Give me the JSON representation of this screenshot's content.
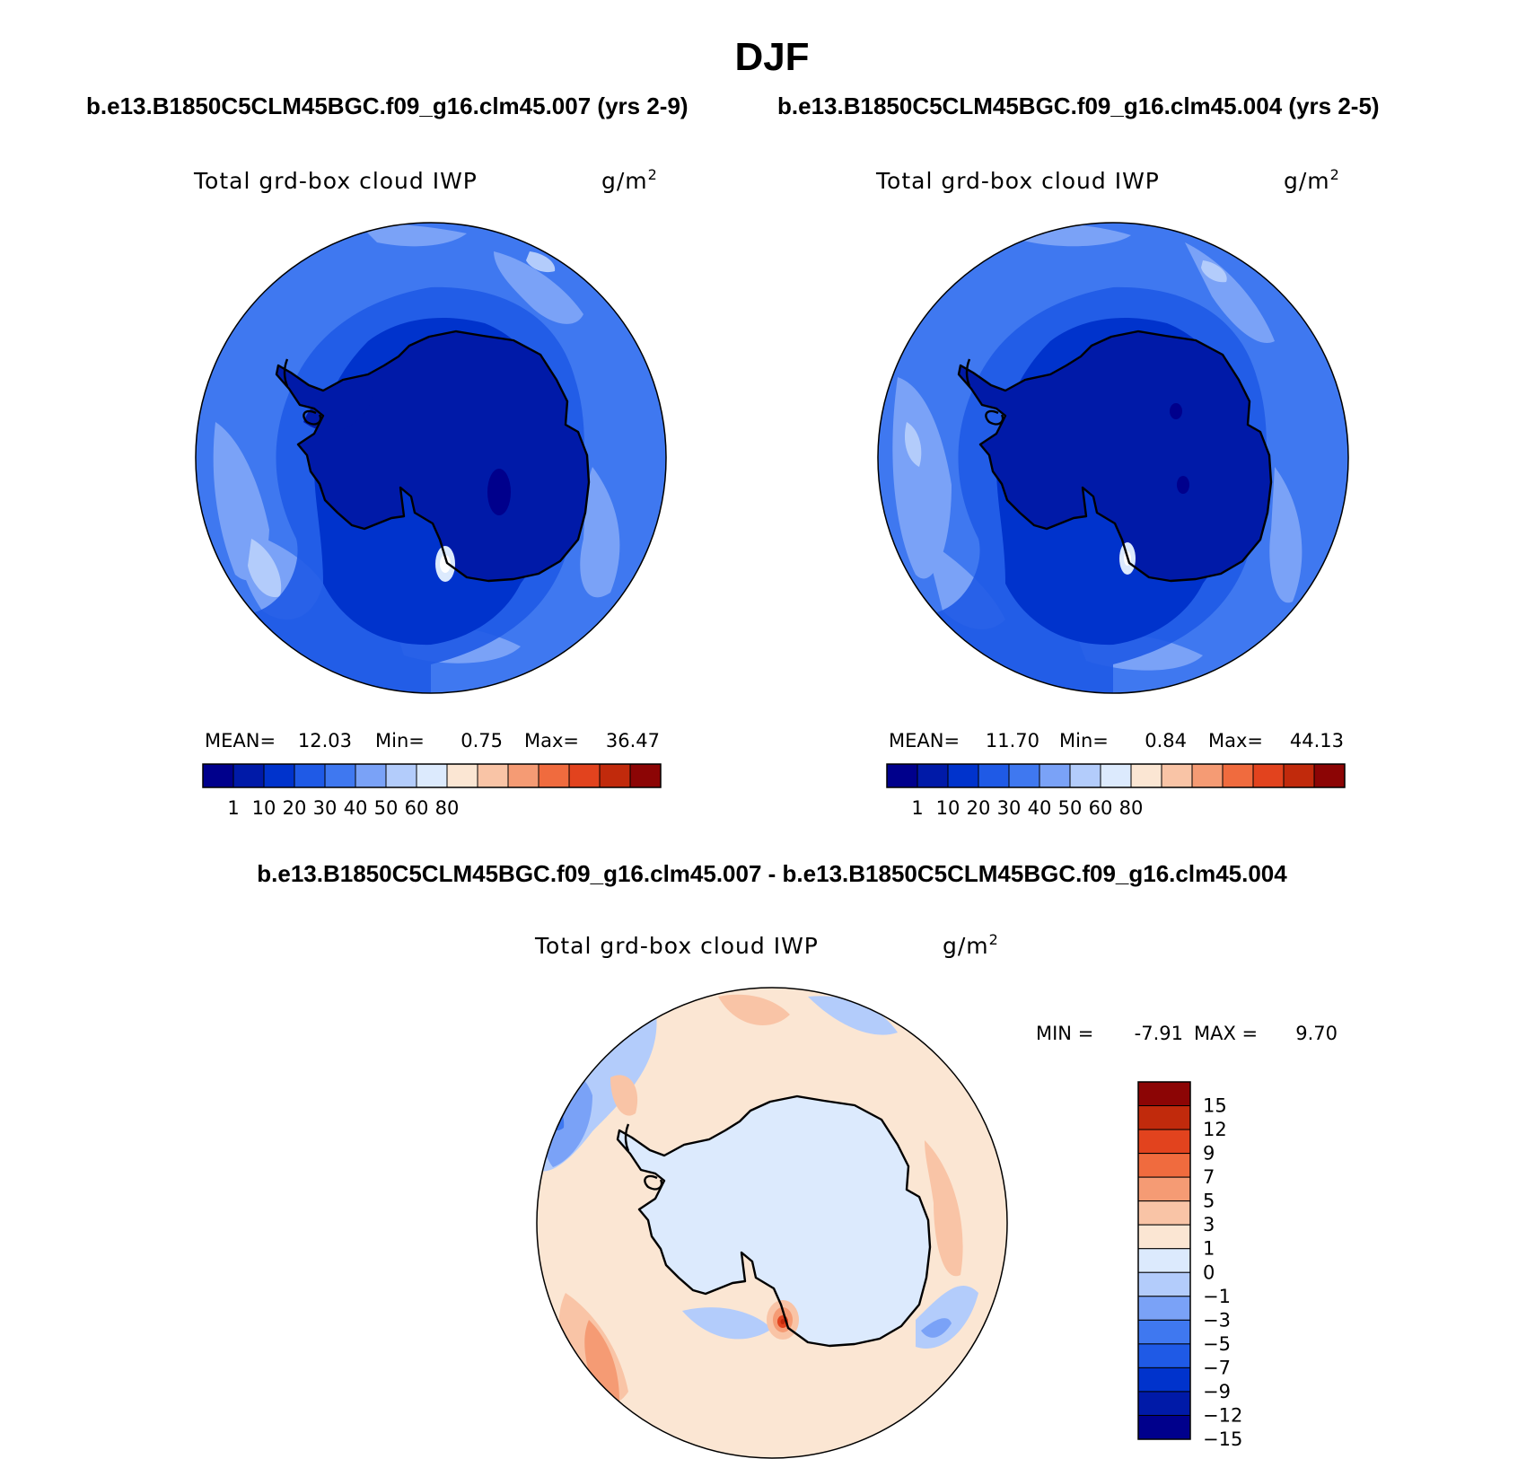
{
  "figure": {
    "season_title": "DJF",
    "top_left_case": "b.e13.B1850C5CLM45BGC.f09_g16.clm45.007 (yrs 2-9)",
    "top_right_case": "b.e13.B1850C5CLM45BGC.f09_g16.clm45.004 (yrs 2-5)",
    "diff_case": "b.e13.B1850C5CLM45BGC.f09_g16.clm45.007 - b.e13.B1850C5CLM45BGC.f09_g16.clm45.004"
  },
  "panels": [
    {
      "variable": "Total grd-box cloud IWP",
      "units": "g/m",
      "units_sup": "2",
      "mean_label": "MEAN=",
      "mean": "12.03",
      "min_label": "Min=",
      "min": "0.75",
      "max_label": "Max=",
      "max": "36.47"
    },
    {
      "variable": "Total grd-box cloud IWP",
      "units": "g/m",
      "units_sup": "2",
      "mean_label": "MEAN=",
      "mean": "11.70",
      "min_label": "Min=",
      "min": "0.84",
      "max_label": "Max=",
      "max": "44.13"
    },
    {
      "variable": "Total grd-box cloud IWP",
      "units": "g/m",
      "units_sup": "2",
      "min_label": "MIN =",
      "min": "-7.91",
      "max_label": "MAX =",
      "max": "9.70"
    }
  ],
  "colorbar_abs": {
    "ticks": [
      "1",
      "10",
      "20",
      "30",
      "40",
      "50",
      "60",
      "80"
    ],
    "colors": [
      "#00008c",
      "#001aa8",
      "#0033cc",
      "#1f5ae6",
      "#3f78f0",
      "#7aa2f7",
      "#b3ccfb",
      "#dceafd",
      "#fbe6d3",
      "#f9c4a6",
      "#f59b74",
      "#f06b3e",
      "#e2431e",
      "#c12a0c",
      "#8c0505"
    ]
  },
  "colorbar_diff": {
    "ticks": [
      "15",
      "12",
      "9",
      "7",
      "5",
      "3",
      "1",
      "0",
      "-1",
      "-3",
      "-5",
      "-7",
      "-9",
      "-12",
      "-15"
    ],
    "colors": [
      "#8c0505",
      "#c12a0c",
      "#e2431e",
      "#f06b3e",
      "#f59b74",
      "#f9c4a6",
      "#fbe6d3",
      "#dceafd",
      "#b3ccfb",
      "#7aa2f7",
      "#3f78f0",
      "#1f5ae6",
      "#0033cc",
      "#001aa8",
      "#00008c"
    ]
  },
  "map_fields": {
    "abs_left": [
      {
        "level": "#3f78f0",
        "shape": "ocean"
      },
      {
        "level": "#7aa2f7",
        "shape": "outer-bands"
      },
      {
        "level": "#b3ccfb",
        "shape": "outer-spots"
      },
      {
        "level": "#1f5ae6",
        "shape": "ring"
      },
      {
        "level": "#0033cc",
        "shape": "inner-ring"
      },
      {
        "level": "#001aa8",
        "shape": "continent"
      },
      {
        "level": "#00008c",
        "shape": "plateau-spot"
      }
    ],
    "abs_right": [
      {
        "level": "#3f78f0",
        "shape": "ocean"
      },
      {
        "level": "#7aa2f7",
        "shape": "outer-bands"
      },
      {
        "level": "#b3ccfb",
        "shape": "outer-spots"
      },
      {
        "level": "#1f5ae6",
        "shape": "ring"
      },
      {
        "level": "#0033cc",
        "shape": "inner-ring"
      },
      {
        "level": "#001aa8",
        "shape": "continent"
      },
      {
        "level": "#00008c",
        "shape": "plateau-spot"
      }
    ]
  }
}
